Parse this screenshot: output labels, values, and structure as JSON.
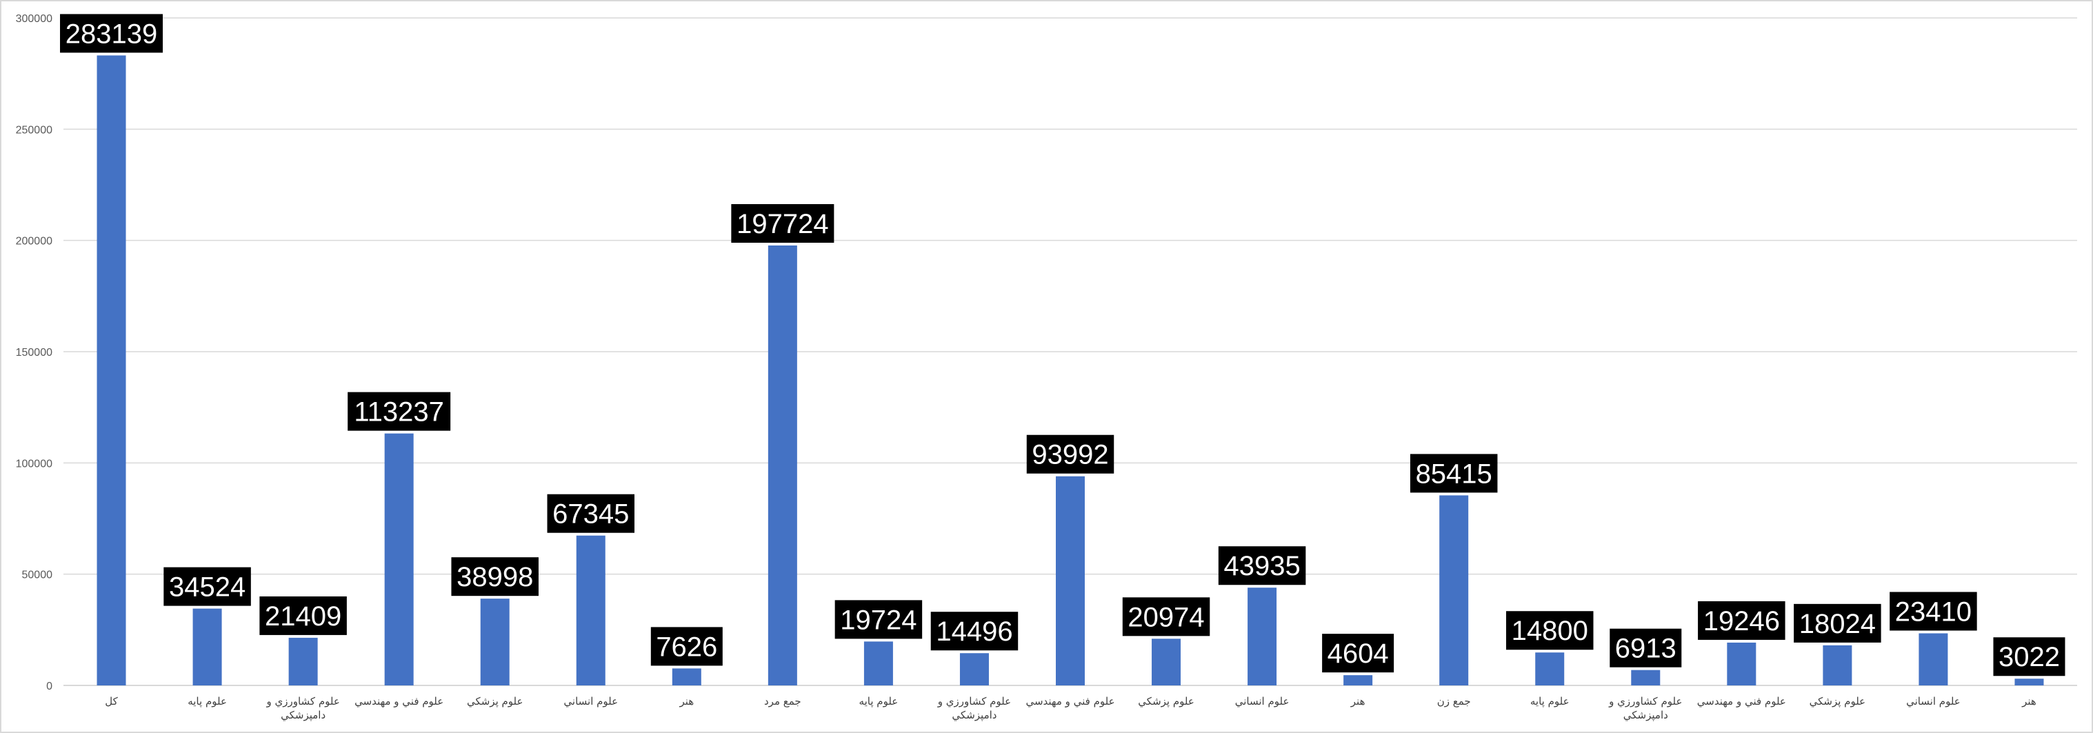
{
  "chart_data": {
    "type": "bar",
    "categories": [
      "کل",
      "علوم پايه",
      "علوم كشاورزي و دامپزشكي",
      "علوم فني و مهندسي",
      "علوم پزشكي",
      "علوم انساني",
      "هنر",
      "جمع مرد",
      "علوم پايه",
      "علوم كشاورزي و دامپزشكي",
      "علوم فني و مهندسي",
      "علوم پزشكي",
      "علوم انساني",
      "هنر",
      "جمع زن",
      "علوم پايه",
      "علوم كشاورزي و دامپزشكي",
      "علوم فني و مهندسي",
      "علوم پزشكي",
      "علوم انساني",
      "هنر"
    ],
    "category_lines": [
      [
        "کل"
      ],
      [
        "علوم پايه"
      ],
      [
        "علوم كشاورزي و",
        "دامپزشكي"
      ],
      [
        "علوم فني و مهندسي"
      ],
      [
        "علوم پزشكي"
      ],
      [
        "علوم انساني"
      ],
      [
        "هنر"
      ],
      [
        "جمع مرد"
      ],
      [
        "علوم پايه"
      ],
      [
        "علوم كشاورزي و",
        "دامپزشكي"
      ],
      [
        "علوم فني و مهندسي"
      ],
      [
        "علوم پزشكي"
      ],
      [
        "علوم انساني"
      ],
      [
        "هنر"
      ],
      [
        "جمع زن"
      ],
      [
        "علوم پايه"
      ],
      [
        "علوم كشاورزي و",
        "دامپزشكي"
      ],
      [
        "علوم فني و مهندسي"
      ],
      [
        "علوم پزشكي"
      ],
      [
        "علوم انساني"
      ],
      [
        "هنر"
      ]
    ],
    "values": [
      283139,
      34524,
      21409,
      113237,
      38998,
      67345,
      7626,
      197724,
      19724,
      14496,
      93992,
      20974,
      43935,
      4604,
      85415,
      14800,
      6913,
      19246,
      18024,
      23410,
      3022
    ],
    "title": "",
    "xlabel": "",
    "ylabel": "",
    "ylim": [
      0,
      300000
    ],
    "yticks": [
      0,
      50000,
      100000,
      150000,
      200000,
      250000,
      300000
    ],
    "grid": true,
    "legend": "none",
    "data_labels": true,
    "colors": {
      "bar": "#4472c4",
      "grid": "#d9d9d9",
      "label_bg": "#000000",
      "label_text": "#ffffff"
    }
  }
}
